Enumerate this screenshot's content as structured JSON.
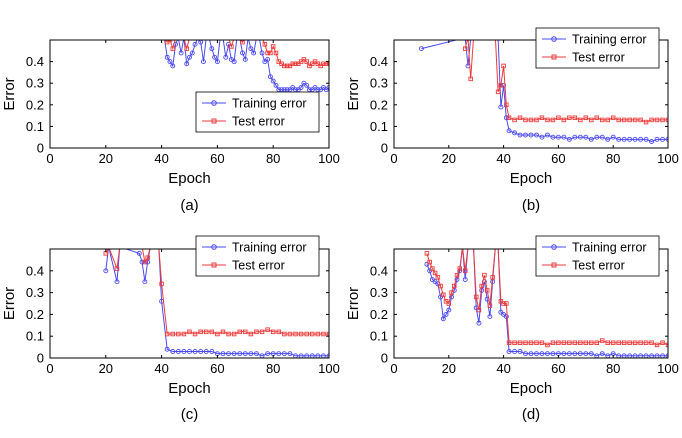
{
  "figure": {
    "panels": [
      "(a)",
      "(b)",
      "(c)",
      "(d)"
    ]
  },
  "colors": {
    "training": "#4a4af0",
    "test": "#ee3b3b",
    "axis": "#000000"
  },
  "chart_data": [
    {
      "type": "line",
      "caption": "(a)",
      "xlabel": "Epoch",
      "ylabel": "Error",
      "xlim": [
        0,
        100
      ],
      "ylim": [
        0,
        0.5
      ],
      "xticks": [
        "0",
        "20",
        "40",
        "60",
        "80",
        "100"
      ],
      "yticks": [
        "0",
        "0.1",
        "0.2",
        "0.3",
        "0.4"
      ],
      "legend": {
        "placement": "middle-right",
        "entries": [
          "Training error",
          "Test error"
        ]
      },
      "series": [
        {
          "name": "Training error",
          "x": [
            41,
            42,
            43,
            44,
            45,
            46,
            47,
            48,
            49,
            50,
            51,
            52,
            53,
            54,
            55,
            56,
            57,
            58,
            59,
            60,
            61,
            62,
            63,
            64,
            65,
            66,
            67,
            68,
            69,
            70,
            71,
            72,
            73,
            74,
            75,
            76,
            77,
            78,
            79,
            80,
            81,
            82,
            83,
            84,
            85,
            86,
            87,
            88,
            89,
            90,
            91,
            92,
            93,
            94,
            95,
            96,
            97,
            98,
            99,
            100
          ],
          "y": [
            0.51,
            0.42,
            0.4,
            0.38,
            0.48,
            0.51,
            0.44,
            0.51,
            0.39,
            0.42,
            0.44,
            0.48,
            0.51,
            0.49,
            0.4,
            0.51,
            0.51,
            0.46,
            0.42,
            0.4,
            0.51,
            0.51,
            0.42,
            0.48,
            0.41,
            0.4,
            0.51,
            0.51,
            0.44,
            0.41,
            0.51,
            0.46,
            0.44,
            0.51,
            0.51,
            0.44,
            0.4,
            0.41,
            0.33,
            0.31,
            0.29,
            0.27,
            0.27,
            0.27,
            0.27,
            0.27,
            0.28,
            0.27,
            0.27,
            0.28,
            0.3,
            0.29,
            0.27,
            0.27,
            0.28,
            0.27,
            0.27,
            0.28,
            0.27,
            0.28
          ]
        },
        {
          "name": "Test error",
          "x": [
            41,
            42,
            43,
            44,
            45,
            46,
            47,
            48,
            49,
            50,
            51,
            52,
            53,
            54,
            55,
            56,
            57,
            58,
            59,
            60,
            61,
            62,
            63,
            64,
            65,
            66,
            67,
            68,
            69,
            70,
            71,
            72,
            73,
            74,
            75,
            76,
            77,
            78,
            79,
            80,
            81,
            82,
            83,
            84,
            85,
            86,
            87,
            88,
            89,
            90,
            91,
            92,
            93,
            94,
            95,
            96,
            97,
            98,
            99,
            100
          ],
          "y": [
            0.51,
            0.49,
            0.5,
            0.46,
            0.51,
            0.51,
            0.51,
            0.51,
            0.46,
            0.51,
            0.51,
            0.51,
            0.51,
            0.51,
            0.51,
            0.51,
            0.51,
            0.51,
            0.51,
            0.51,
            0.51,
            0.51,
            0.51,
            0.51,
            0.47,
            0.51,
            0.51,
            0.51,
            0.49,
            0.51,
            0.51,
            0.51,
            0.51,
            0.51,
            0.51,
            0.51,
            0.48,
            0.44,
            0.44,
            0.47,
            0.44,
            0.4,
            0.39,
            0.38,
            0.38,
            0.38,
            0.39,
            0.39,
            0.39,
            0.4,
            0.41,
            0.4,
            0.38,
            0.39,
            0.4,
            0.39,
            0.38,
            0.39,
            0.39,
            0.39
          ]
        }
      ]
    },
    {
      "type": "line",
      "caption": "(b)",
      "xlabel": "Epoch",
      "ylabel": "Error",
      "xlim": [
        0,
        100
      ],
      "ylim": [
        0,
        0.5
      ],
      "xticks": [
        "0",
        "20",
        "40",
        "60",
        "80",
        "100"
      ],
      "yticks": [
        "0",
        "0.1",
        "0.2",
        "0.3",
        "0.4"
      ],
      "legend": {
        "placement": "top-right",
        "entries": [
          "Training error",
          "Test error"
        ]
      },
      "series": [
        {
          "name": "Training error",
          "x": [
            10,
            26,
            27,
            28,
            29,
            30,
            31,
            32,
            33,
            34,
            35,
            36,
            37,
            38,
            39,
            40,
            41,
            42,
            44,
            46,
            48,
            50,
            52,
            54,
            56,
            58,
            60,
            62,
            64,
            66,
            68,
            70,
            72,
            74,
            76,
            78,
            80,
            82,
            84,
            86,
            88,
            90,
            92,
            94,
            96,
            98,
            100
          ],
          "y": [
            0.46,
            0.51,
            0.38,
            0.51,
            0.51,
            0.51,
            0.51,
            0.51,
            0.51,
            0.51,
            0.51,
            0.51,
            0.51,
            0.51,
            0.19,
            0.29,
            0.14,
            0.08,
            0.07,
            0.06,
            0.06,
            0.06,
            0.06,
            0.05,
            0.06,
            0.05,
            0.05,
            0.05,
            0.04,
            0.05,
            0.05,
            0.05,
            0.04,
            0.05,
            0.05,
            0.04,
            0.05,
            0.04,
            0.04,
            0.04,
            0.04,
            0.04,
            0.04,
            0.03,
            0.04,
            0.04,
            0.04
          ]
        },
        {
          "name": "Test error",
          "x": [
            26,
            27,
            28,
            29,
            30,
            31,
            32,
            33,
            34,
            35,
            36,
            37,
            38,
            39,
            40,
            41,
            42,
            44,
            46,
            48,
            50,
            52,
            54,
            56,
            58,
            60,
            62,
            64,
            66,
            68,
            70,
            72,
            74,
            76,
            78,
            80,
            82,
            84,
            86,
            88,
            90,
            92,
            94,
            96,
            98,
            100
          ],
          "y": [
            0.46,
            0.51,
            0.32,
            0.51,
            0.51,
            0.51,
            0.51,
            0.51,
            0.51,
            0.51,
            0.51,
            0.51,
            0.26,
            0.29,
            0.38,
            0.2,
            0.14,
            0.13,
            0.14,
            0.13,
            0.13,
            0.13,
            0.14,
            0.13,
            0.13,
            0.14,
            0.13,
            0.14,
            0.14,
            0.13,
            0.14,
            0.13,
            0.14,
            0.13,
            0.13,
            0.14,
            0.13,
            0.13,
            0.13,
            0.13,
            0.13,
            0.12,
            0.13,
            0.13,
            0.13,
            0.13
          ]
        }
      ]
    },
    {
      "type": "line",
      "caption": "(c)",
      "xlabel": "Epoch",
      "ylabel": "Error",
      "xlim": [
        0,
        100
      ],
      "ylim": [
        0,
        0.5
      ],
      "xticks": [
        "0",
        "20",
        "40",
        "60",
        "80",
        "100"
      ],
      "yticks": [
        "0",
        "0.1",
        "0.2",
        "0.3",
        "0.4"
      ],
      "legend": {
        "placement": "top-right",
        "entries": [
          "Training error",
          "Test error"
        ]
      },
      "series": [
        {
          "name": "Training error",
          "x": [
            20,
            21,
            24,
            25,
            32,
            33,
            34,
            35,
            36,
            37,
            39,
            40,
            42,
            44,
            46,
            48,
            50,
            52,
            54,
            56,
            58,
            60,
            62,
            64,
            66,
            68,
            70,
            72,
            74,
            76,
            78,
            80,
            82,
            84,
            86,
            88,
            90,
            92,
            94,
            96,
            98,
            100
          ],
          "y": [
            0.4,
            0.51,
            0.35,
            0.51,
            0.48,
            0.44,
            0.35,
            0.44,
            0.51,
            0.51,
            0.51,
            0.26,
            0.04,
            0.03,
            0.03,
            0.03,
            0.03,
            0.03,
            0.03,
            0.03,
            0.03,
            0.02,
            0.02,
            0.02,
            0.02,
            0.02,
            0.02,
            0.02,
            0.02,
            0.01,
            0.02,
            0.02,
            0.02,
            0.02,
            0.02,
            0.01,
            0.01,
            0.01,
            0.01,
            0.01,
            0.01,
            0.01
          ]
        },
        {
          "name": "Test error",
          "x": [
            20,
            21,
            24,
            25,
            32,
            33,
            34,
            35,
            36,
            37,
            39,
            40,
            42,
            44,
            46,
            48,
            50,
            52,
            54,
            56,
            58,
            60,
            62,
            64,
            66,
            68,
            70,
            72,
            74,
            76,
            78,
            80,
            82,
            84,
            86,
            88,
            90,
            92,
            94,
            96,
            98,
            100
          ],
          "y": [
            0.48,
            0.51,
            0.41,
            0.51,
            0.51,
            0.51,
            0.44,
            0.46,
            0.51,
            0.51,
            0.51,
            0.34,
            0.11,
            0.11,
            0.11,
            0.11,
            0.12,
            0.11,
            0.12,
            0.12,
            0.12,
            0.11,
            0.12,
            0.11,
            0.11,
            0.12,
            0.12,
            0.11,
            0.12,
            0.12,
            0.13,
            0.12,
            0.12,
            0.11,
            0.11,
            0.11,
            0.11,
            0.11,
            0.11,
            0.11,
            0.11,
            0.11
          ]
        }
      ]
    },
    {
      "type": "line",
      "caption": "(d)",
      "xlabel": "Epoch",
      "ylabel": "Error",
      "xlim": [
        0,
        100
      ],
      "ylim": [
        0,
        0.5
      ],
      "xticks": [
        "0",
        "20",
        "40",
        "60",
        "80",
        "100"
      ],
      "yticks": [
        "0",
        "0.1",
        "0.2",
        "0.3",
        "0.4"
      ],
      "legend": {
        "placement": "top-right",
        "entries": [
          "Training error",
          "Test error"
        ]
      },
      "series": [
        {
          "name": "Training error",
          "x": [
            12,
            13,
            14,
            15,
            16,
            17,
            18,
            19,
            20,
            21,
            22,
            23,
            24,
            25,
            26,
            27,
            28,
            29,
            30,
            31,
            32,
            33,
            34,
            35,
            36,
            37,
            38,
            39,
            40,
            41,
            42,
            44,
            46,
            48,
            50,
            52,
            54,
            56,
            58,
            60,
            62,
            64,
            66,
            68,
            70,
            72,
            74,
            76,
            78,
            80,
            82,
            84,
            86,
            88,
            90,
            92,
            94,
            96,
            98,
            100
          ],
          "y": [
            0.43,
            0.4,
            0.36,
            0.35,
            0.34,
            0.28,
            0.18,
            0.2,
            0.22,
            0.28,
            0.31,
            0.36,
            0.4,
            0.51,
            0.36,
            0.51,
            0.51,
            0.51,
            0.23,
            0.16,
            0.31,
            0.35,
            0.27,
            0.19,
            0.35,
            0.51,
            0.51,
            0.21,
            0.2,
            0.19,
            0.03,
            0.03,
            0.03,
            0.02,
            0.02,
            0.02,
            0.02,
            0.02,
            0.02,
            0.02,
            0.02,
            0.02,
            0.02,
            0.02,
            0.02,
            0.02,
            0.01,
            0.02,
            0.01,
            0.02,
            0.01,
            0.01,
            0.01,
            0.01,
            0.01,
            0.01,
            0.01,
            0.01,
            0.01,
            0.01
          ]
        },
        {
          "name": "Test error",
          "x": [
            12,
            13,
            14,
            15,
            16,
            17,
            18,
            19,
            20,
            21,
            22,
            23,
            24,
            25,
            26,
            27,
            28,
            29,
            30,
            31,
            32,
            33,
            34,
            35,
            36,
            37,
            38,
            39,
            40,
            41,
            42,
            44,
            46,
            48,
            50,
            52,
            54,
            56,
            58,
            60,
            62,
            64,
            66,
            68,
            70,
            72,
            74,
            76,
            78,
            80,
            82,
            84,
            86,
            88,
            90,
            92,
            94,
            96,
            98,
            100
          ],
          "y": [
            0.48,
            0.44,
            0.41,
            0.39,
            0.37,
            0.33,
            0.29,
            0.26,
            0.25,
            0.3,
            0.33,
            0.38,
            0.41,
            0.51,
            0.4,
            0.51,
            0.51,
            0.51,
            0.28,
            0.22,
            0.33,
            0.38,
            0.31,
            0.24,
            0.37,
            0.51,
            0.51,
            0.26,
            0.25,
            0.25,
            0.07,
            0.07,
            0.07,
            0.07,
            0.07,
            0.07,
            0.07,
            0.06,
            0.07,
            0.07,
            0.07,
            0.07,
            0.07,
            0.07,
            0.07,
            0.07,
            0.07,
            0.08,
            0.07,
            0.07,
            0.07,
            0.07,
            0.07,
            0.07,
            0.07,
            0.07,
            0.07,
            0.06,
            0.07,
            0.06
          ]
        }
      ]
    }
  ]
}
